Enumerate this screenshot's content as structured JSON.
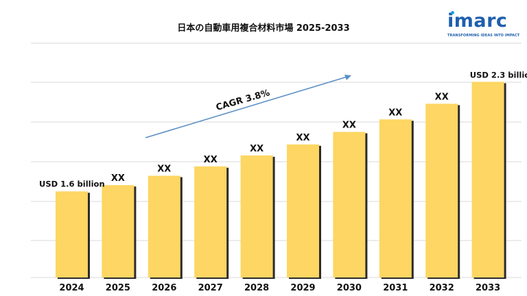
{
  "title": "日本の自動車用複合材料市場 2025-2033",
  "logo": {
    "word": "imarc",
    "tagline": "TRANSFORMING IDEAS INTO IMPACT"
  },
  "chart_data": {
    "type": "bar",
    "title": "日本の自動車用複合材料市場 2025-2033",
    "categories": [
      "2024",
      "2025",
      "2026",
      "2027",
      "2028",
      "2029",
      "2030",
      "2031",
      "2032",
      "2033"
    ],
    "values": [
      1.6,
      1.64,
      1.7,
      1.76,
      1.83,
      1.9,
      1.98,
      2.06,
      2.16,
      2.3
    ],
    "value_labels": [
      "USD  1.6 billion",
      "XX",
      "XX",
      "XX",
      "XX",
      "XX",
      "XX",
      "XX",
      "XX",
      "USD 2.3 billion"
    ],
    "annotation": "CAGR 3.8%",
    "ylim": [
      1.05,
      2.35
    ],
    "unit": "USD billion",
    "grid": true,
    "colors": {
      "bar": "#fdd663",
      "bar_edge": "#2b2b2b",
      "arrow": "#5b8fc4",
      "grid": "#d9d9d9"
    }
  }
}
